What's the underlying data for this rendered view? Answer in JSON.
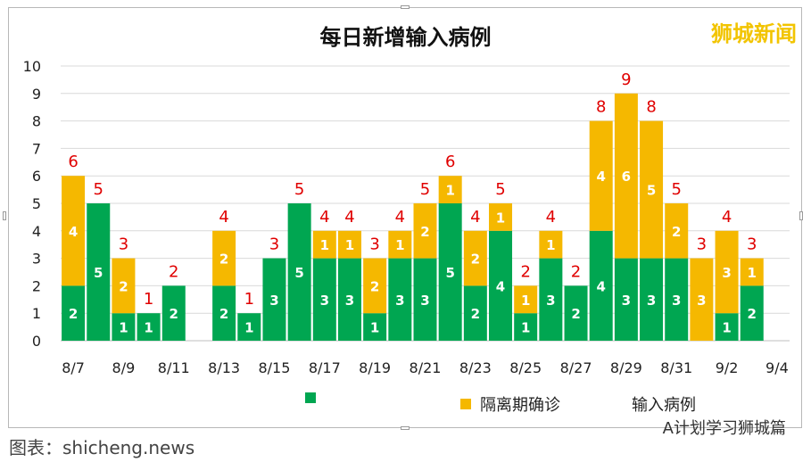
{
  "chart_data": {
    "type": "bar",
    "title": "每日新增输入病例",
    "stacked": true,
    "x": [
      "8/7",
      "8/8",
      "8/9",
      "8/10",
      "8/11",
      "8/12",
      "8/13",
      "8/14",
      "8/15",
      "8/16",
      "8/17",
      "8/18",
      "8/19",
      "8/20",
      "8/21",
      "8/22",
      "8/23",
      "8/24",
      "8/25",
      "8/26",
      "8/27",
      "8/28",
      "8/29",
      "8/30",
      "8/31",
      "9/1",
      "9/2",
      "9/3",
      "9/4"
    ],
    "tick_labels": [
      "8/7",
      "8/9",
      "8/11",
      "8/13",
      "8/15",
      "8/17",
      "8/19",
      "8/21",
      "8/23",
      "8/25",
      "8/27",
      "8/29",
      "8/31",
      "9/2",
      "9/4"
    ],
    "series": [
      {
        "name": "",
        "color": "#00a651",
        "values": [
          2,
          5,
          1,
          1,
          2,
          0,
          2,
          1,
          3,
          5,
          3,
          3,
          1,
          3,
          3,
          5,
          2,
          4,
          1,
          3,
          2,
          4,
          3,
          3,
          3,
          0,
          1,
          2,
          0
        ]
      },
      {
        "name": "隔离期确诊",
        "color": "#f5b800",
        "values": [
          4,
          0,
          2,
          0,
          0,
          0,
          2,
          0,
          0,
          0,
          1,
          1,
          2,
          1,
          2,
          1,
          2,
          1,
          1,
          1,
          0,
          4,
          6,
          5,
          2,
          3,
          3,
          1,
          0
        ]
      }
    ],
    "totals": [
      6,
      5,
      3,
      1,
      2,
      0,
      4,
      1,
      3,
      5,
      4,
      4,
      3,
      4,
      5,
      6,
      4,
      5,
      2,
      4,
      2,
      8,
      9,
      8,
      5,
      3,
      4,
      3,
      0
    ],
    "total_series_name": "输入病例",
    "total_color": "#e00000",
    "ylim": [
      0,
      10
    ],
    "yticks": [
      0,
      1,
      2,
      3,
      4,
      5,
      6,
      7,
      8,
      9,
      10
    ],
    "grid": true,
    "legend_position": "bottom"
  },
  "watermark": "狮城新闻",
  "footer_text": "图表：shicheng.news",
  "brand_text": "A计划学习狮城篇"
}
